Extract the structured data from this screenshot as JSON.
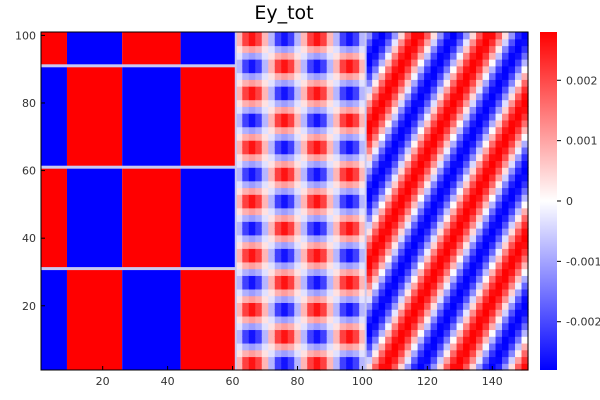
{
  "chart_data": {
    "type": "heatmap",
    "title": "Ey_tot",
    "xlabel": "",
    "ylabel": "",
    "xlim": [
      1,
      151
    ],
    "ylim": [
      1,
      101
    ],
    "x_ticks": [
      {
        "value": 20,
        "label": "20"
      },
      {
        "value": 40,
        "label": "40"
      },
      {
        "value": 60,
        "label": "60"
      },
      {
        "value": 80,
        "label": "80"
      },
      {
        "value": 100,
        "label": "100"
      },
      {
        "value": 120,
        "label": "120"
      },
      {
        "value": 140,
        "label": "140"
      }
    ],
    "y_ticks": [
      {
        "value": 20,
        "label": "20"
      },
      {
        "value": 40,
        "label": "40"
      },
      {
        "value": 60,
        "label": "60"
      },
      {
        "value": 80,
        "label": "80"
      },
      {
        "value": 100,
        "label": "100"
      }
    ],
    "colorbar": {
      "min": -0.0028,
      "max": 0.0028,
      "colors": [
        "#0000ff",
        "#ffffff",
        "#ff0000"
      ],
      "ticks": [
        {
          "value": 0.002,
          "label": "0.002"
        },
        {
          "value": 0.001,
          "label": "0.001"
        },
        {
          "value": 0,
          "label": "0"
        },
        {
          "value": -0.001,
          "label": "-0.001"
        },
        {
          "value": -0.002,
          "label": "-0.002"
        }
      ]
    },
    "regions": [
      {
        "name": "checkerboard",
        "x": [
          1,
          61
        ],
        "y": [
          1,
          101
        ],
        "block_edges_x": [
          9,
          26,
          44,
          61
        ],
        "block_edges_y": [
          1,
          31,
          61,
          91,
          101
        ]
      },
      {
        "name": "standing-wave",
        "x": [
          61,
          101
        ],
        "y": [
          1,
          101
        ],
        "x_period": 20,
        "y_period": 16
      },
      {
        "name": "diagonal-wave",
        "x": [
          101,
          151
        ],
        "y": [
          1,
          101
        ],
        "period": 22
      }
    ],
    "grid": false,
    "legend": "colorbar-right"
  }
}
